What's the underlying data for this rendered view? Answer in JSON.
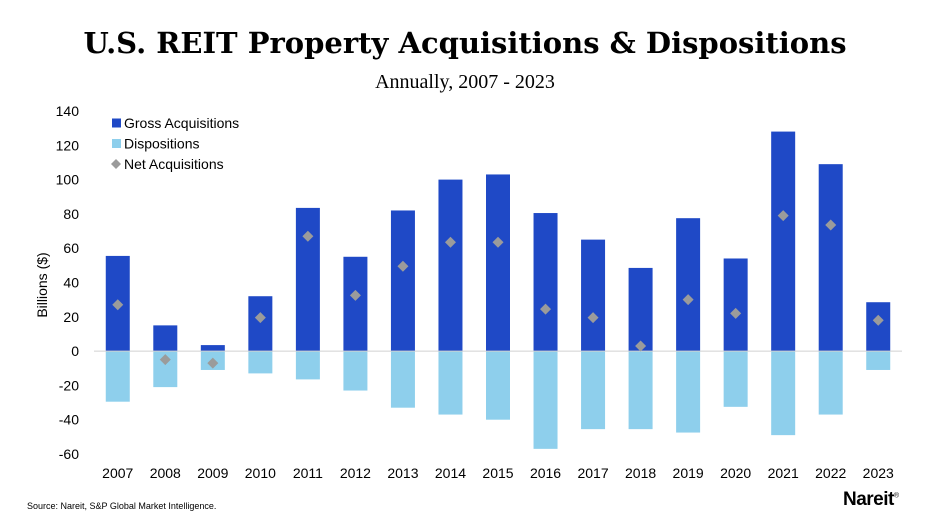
{
  "header": {
    "title": "U.S. REIT Property Acquisitions & Dispositions",
    "subtitle": "Annually, 2007 - 2023"
  },
  "footer": {
    "source": "Source: Nareit, S&P Global Market Intelligence.",
    "brand": "Nareit",
    "brand_mark": "®"
  },
  "chart_data": {
    "type": "bar",
    "title": "U.S. REIT Property Acquisitions & Dispositions",
    "subtitle": "Annually, 2007 - 2023",
    "xlabel": "",
    "ylabel": "Billions ($)",
    "ylim": [
      -60,
      140
    ],
    "yticks": [
      -60,
      -40,
      -20,
      0,
      20,
      40,
      60,
      80,
      100,
      120,
      140
    ],
    "grid": false,
    "legend_position": "top-left",
    "categories": [
      "2007",
      "2008",
      "2009",
      "2010",
      "2011",
      "2012",
      "2013",
      "2014",
      "2015",
      "2016",
      "2017",
      "2018",
      "2019",
      "2020",
      "2021",
      "2022",
      "2023"
    ],
    "series": [
      {
        "name": "Gross Acquisitions",
        "kind": "bar",
        "color": "#1f49c6",
        "values": [
          55.5,
          15,
          3.5,
          32,
          83.5,
          55,
          82,
          100,
          103,
          80.5,
          65,
          48.5,
          77.5,
          54,
          128,
          109,
          28.5
        ]
      },
      {
        "name": "Dispositions",
        "kind": "bar",
        "color": "#8ecfec",
        "values": [
          -29.5,
          -21,
          -11,
          -13,
          -16.5,
          -23,
          -33,
          -37,
          -40,
          -57,
          -45.5,
          -45.5,
          -47.5,
          -32.5,
          -49,
          -37,
          -11
        ]
      },
      {
        "name": "Net Acquisitions",
        "kind": "marker",
        "color": "#9b9b9b",
        "values": [
          27,
          -5,
          -7,
          19.5,
          67,
          32.5,
          49.5,
          63.5,
          63.5,
          24.5,
          19.5,
          3,
          30,
          22,
          79,
          73.5,
          18
        ]
      }
    ]
  }
}
